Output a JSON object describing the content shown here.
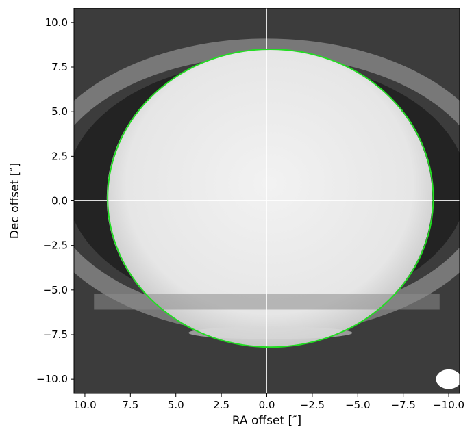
{
  "chart_data": {
    "type": "heatmap",
    "title": "",
    "xlabel": "RA offset [″]",
    "ylabel": "Dec offset [″]",
    "xlim": [
      10.6,
      -10.6
    ],
    "ylim": [
      -10.8,
      10.8
    ],
    "x_inverted": true,
    "x_ticks": [
      10.0,
      7.5,
      5.0,
      2.5,
      0.0,
      -2.5,
      -5.0,
      -7.5,
      -10.0
    ],
    "x_tick_labels": [
      "10.0",
      "7.5",
      "5.0",
      "2.5",
      "0.0",
      "−2.5",
      "−5.0",
      "−7.5",
      "−10.0"
    ],
    "y_ticks": [
      10.0,
      7.5,
      5.0,
      2.5,
      0.0,
      -2.5,
      -5.0,
      -7.5,
      -10.0
    ],
    "y_tick_labels": [
      "10.0",
      "7.5",
      "5.0",
      "2.5",
      "0.0",
      "−2.5",
      "−5.0",
      "−7.5",
      "−10.0"
    ],
    "colormap": "grayscale",
    "crosshair": {
      "x": 0.0,
      "y": 0.0,
      "color": "#ffffff"
    },
    "disk": {
      "center_x": -0.15,
      "center_y": 0.15,
      "semi_major": 8.95,
      "semi_minor": 8.35,
      "brightness": 0.9
    },
    "rings": [
      {
        "name": "outer ring",
        "center_y": 0.8,
        "semi_major": 12.5,
        "semi_minor": 7.8,
        "brightness": 0.55
      }
    ],
    "fit_ellipse": {
      "center_x": -0.2,
      "center_y": 0.15,
      "semi_major": 8.95,
      "semi_minor": 8.35,
      "color": "#22dd22"
    },
    "beam": {
      "center_x": -10.0,
      "center_y": -10.0,
      "major": 0.7,
      "minor": 0.55,
      "color": "#ffffff"
    }
  }
}
